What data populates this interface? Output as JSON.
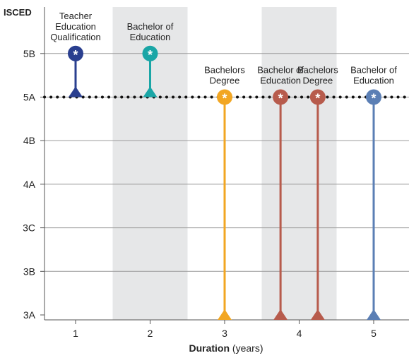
{
  "chart_data": {
    "type": "scatter",
    "ylabel": "ISCED",
    "xlabel": {
      "bold": "Duration",
      "rest": " (years)"
    },
    "y_levels": [
      "3A",
      "3B",
      "3C",
      "4A",
      "4B",
      "5A",
      "5B"
    ],
    "x_ticks": [
      "1",
      "2",
      "3",
      "4",
      "5"
    ],
    "shaded_columns": [
      2,
      4
    ],
    "reference_level": "5A",
    "marker_symbol": "*",
    "points": [
      {
        "label": [
          "Teacher",
          "Education",
          "Qualification"
        ],
        "x": 1,
        "top_level": "5B",
        "base_level": "5A",
        "color": "#2a3f8f"
      },
      {
        "label": [
          "Bachelor of",
          "Education"
        ],
        "x": 2,
        "top_level": "5B",
        "base_level": "5A",
        "color": "#1aa6a6"
      },
      {
        "label": [
          "Bachelors",
          "Degree"
        ],
        "x": 3,
        "top_level": "5A",
        "base_level": "3A",
        "color": "#f2a622"
      },
      {
        "label": [
          "Bachelor of",
          "Education"
        ],
        "x": 3.75,
        "top_level": "5A",
        "base_level": "3A",
        "color": "#b75b4c"
      },
      {
        "label": [
          "Bachelors",
          "Degree"
        ],
        "x": 4.25,
        "top_level": "5A",
        "base_level": "3A",
        "color": "#b75b4c"
      },
      {
        "label": [
          "Bachelor of",
          "Education"
        ],
        "x": 5,
        "top_level": "5A",
        "base_level": "3A",
        "color": "#5b7fb5"
      }
    ]
  }
}
